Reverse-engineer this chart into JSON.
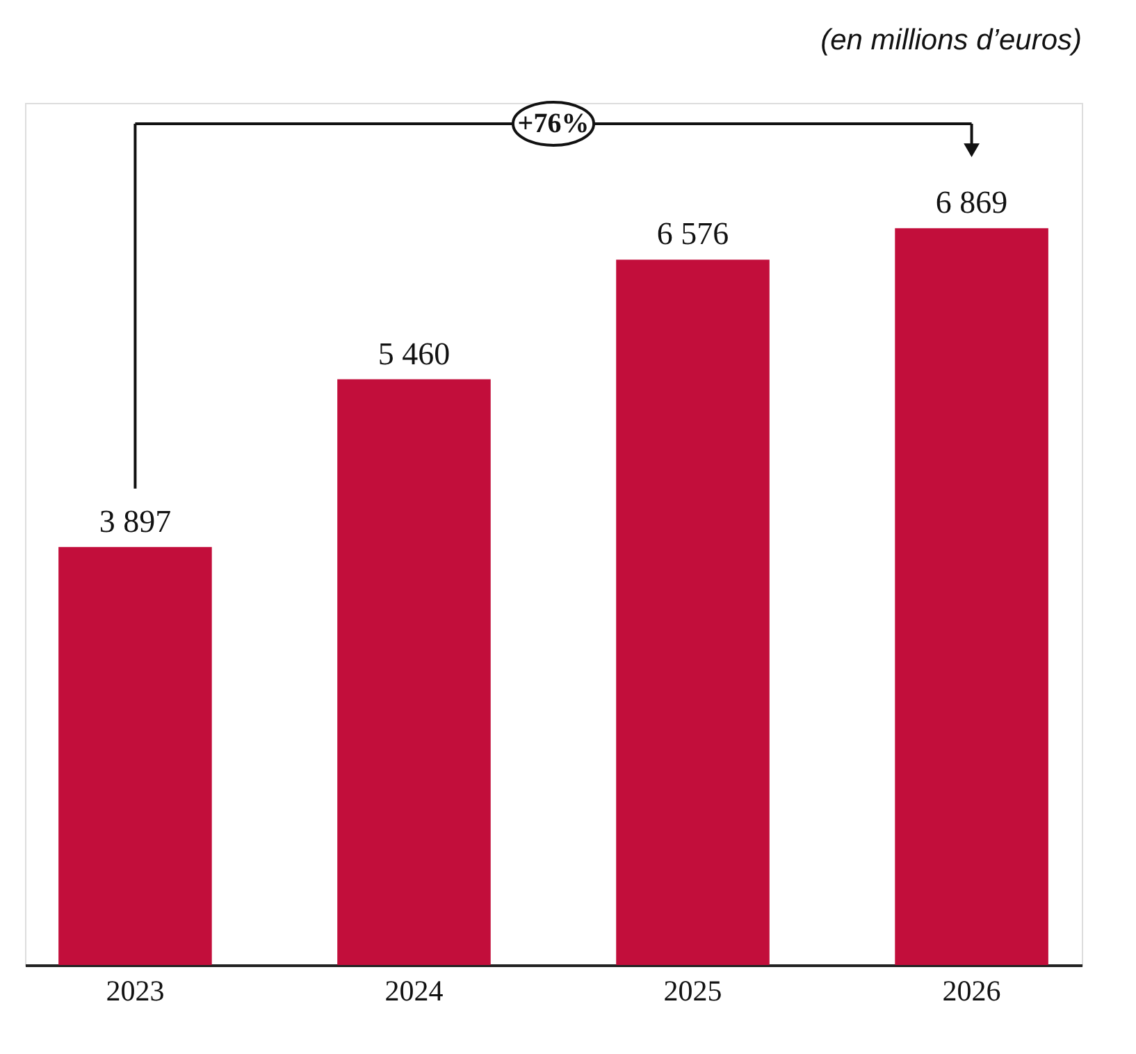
{
  "chart_data": {
    "type": "bar",
    "categories": [
      "2023",
      "2024",
      "2025",
      "2026"
    ],
    "values": [
      3897,
      5460,
      6576,
      6869
    ],
    "color": "#c20e3b",
    "data_labels": true,
    "grid": false,
    "tick_labels": "x",
    "annotations": [
      "(en millions d’euros)",
      "+76%"
    ]
  }
}
